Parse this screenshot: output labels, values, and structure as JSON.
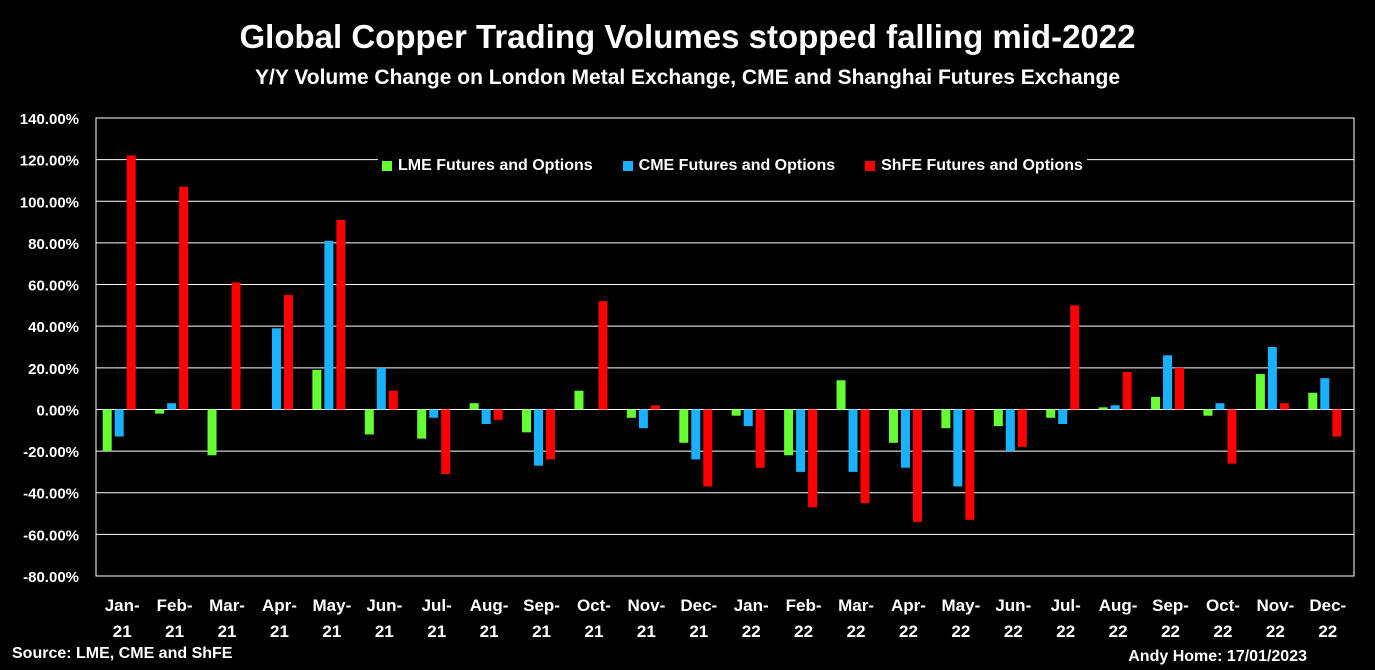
{
  "header": {
    "title": "Global Copper Trading Volumes stopped falling mid-2022",
    "subtitle": "Y/Y Volume Change on London Metal Exchange, CME and Shanghai Futures Exchange"
  },
  "footer": {
    "source": "Source: LME, CME and ShFE",
    "author": "Andy Home: 17/01/2023"
  },
  "colors": {
    "background": "#000000",
    "lme": "#66ff33",
    "cme": "#1ab2ff",
    "shfe": "#ff0000",
    "grid": "#ffffff"
  },
  "chart_data": {
    "type": "bar",
    "title": "Global Copper Trading Volumes stopped falling mid-2022",
    "subtitle": "Y/Y Volume Change on London Metal Exchange, CME and Shanghai Futures Exchange",
    "categories": [
      [
        "Jan-",
        "21"
      ],
      [
        "Feb-",
        "21"
      ],
      [
        "Mar-",
        "21"
      ],
      [
        "Apr-",
        "21"
      ],
      [
        "May-",
        "21"
      ],
      [
        "Jun-",
        "21"
      ],
      [
        "Jul-",
        "21"
      ],
      [
        "Aug-",
        "21"
      ],
      [
        "Sep-",
        "21"
      ],
      [
        "Oct-",
        "21"
      ],
      [
        "Nov-",
        "21"
      ],
      [
        "Dec-",
        "21"
      ],
      [
        "Jan-",
        "22"
      ],
      [
        "Feb-",
        "22"
      ],
      [
        "Mar-",
        "22"
      ],
      [
        "Apr-",
        "22"
      ],
      [
        "May-",
        "22"
      ],
      [
        "Jun-",
        "22"
      ],
      [
        "Jul-",
        "22"
      ],
      [
        "Aug-",
        "22"
      ],
      [
        "Sep-",
        "22"
      ],
      [
        "Oct-",
        "22"
      ],
      [
        "Nov-",
        "22"
      ],
      [
        "Dec-",
        "22"
      ]
    ],
    "series": [
      {
        "name": "LME Futures and Options",
        "color_key": "lme",
        "values": [
          -20,
          -2,
          -22,
          0,
          19,
          -12,
          -14,
          3,
          -11,
          9,
          -4,
          -16,
          -3,
          -22,
          14,
          -16,
          -9,
          -8,
          -4,
          1,
          6,
          -3,
          17,
          8
        ]
      },
      {
        "name": "CME Futures and Options",
        "color_key": "cme",
        "values": [
          -13,
          3,
          0,
          39,
          81,
          20,
          -4,
          -7,
          -27,
          0,
          -9,
          -24,
          -8,
          -30,
          -30,
          -28,
          -37,
          -20,
          -7,
          2,
          26,
          3,
          30,
          15
        ]
      },
      {
        "name": "ShFE Futures and Options",
        "color_key": "shfe",
        "values": [
          122,
          107,
          61,
          55,
          91,
          9,
          -31,
          -5,
          -24,
          52,
          2,
          -37,
          -28,
          -47,
          -45,
          -54,
          -53,
          -18,
          50,
          18,
          20,
          -26,
          3,
          -13
        ]
      }
    ],
    "ylim": [
      -80,
      140
    ],
    "yticks": [
      "140.00%",
      "120.00%",
      "100.00%",
      "80.00%",
      "60.00%",
      "40.00%",
      "20.00%",
      "0.00%",
      "-20.00%",
      "-40.00%",
      "-60.00%",
      "-80.00%"
    ],
    "ytick_values": [
      140,
      120,
      100,
      80,
      60,
      40,
      20,
      0,
      -20,
      -40,
      -60,
      -80
    ],
    "grid": true,
    "legend_position": "top"
  }
}
